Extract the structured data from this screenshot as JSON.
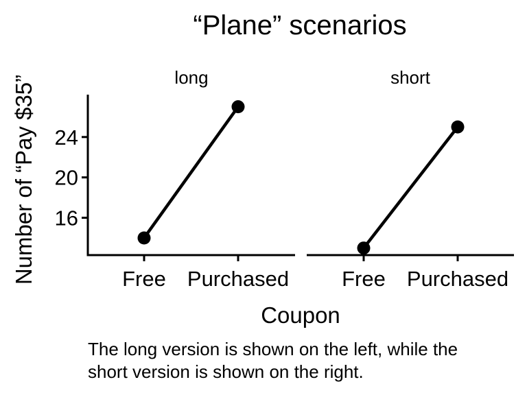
{
  "chart_data": {
    "type": "line",
    "title": "“Plane” scenarios",
    "xlabel": "Coupon",
    "ylabel": "Number of “Pay $35”",
    "categories": [
      "Free",
      "Purchased"
    ],
    "yticks": [
      16,
      20,
      24
    ],
    "ylim": [
      12.3,
      28.2
    ],
    "grid": false,
    "legend": "none",
    "color": "#000000",
    "panels": [
      {
        "label": "long",
        "values": [
          14,
          27
        ]
      },
      {
        "label": "short",
        "values": [
          13,
          25
        ]
      }
    ]
  },
  "caption": {
    "line1": "The long version is shown on the left, while the",
    "line2": "short version is shown on the right."
  }
}
